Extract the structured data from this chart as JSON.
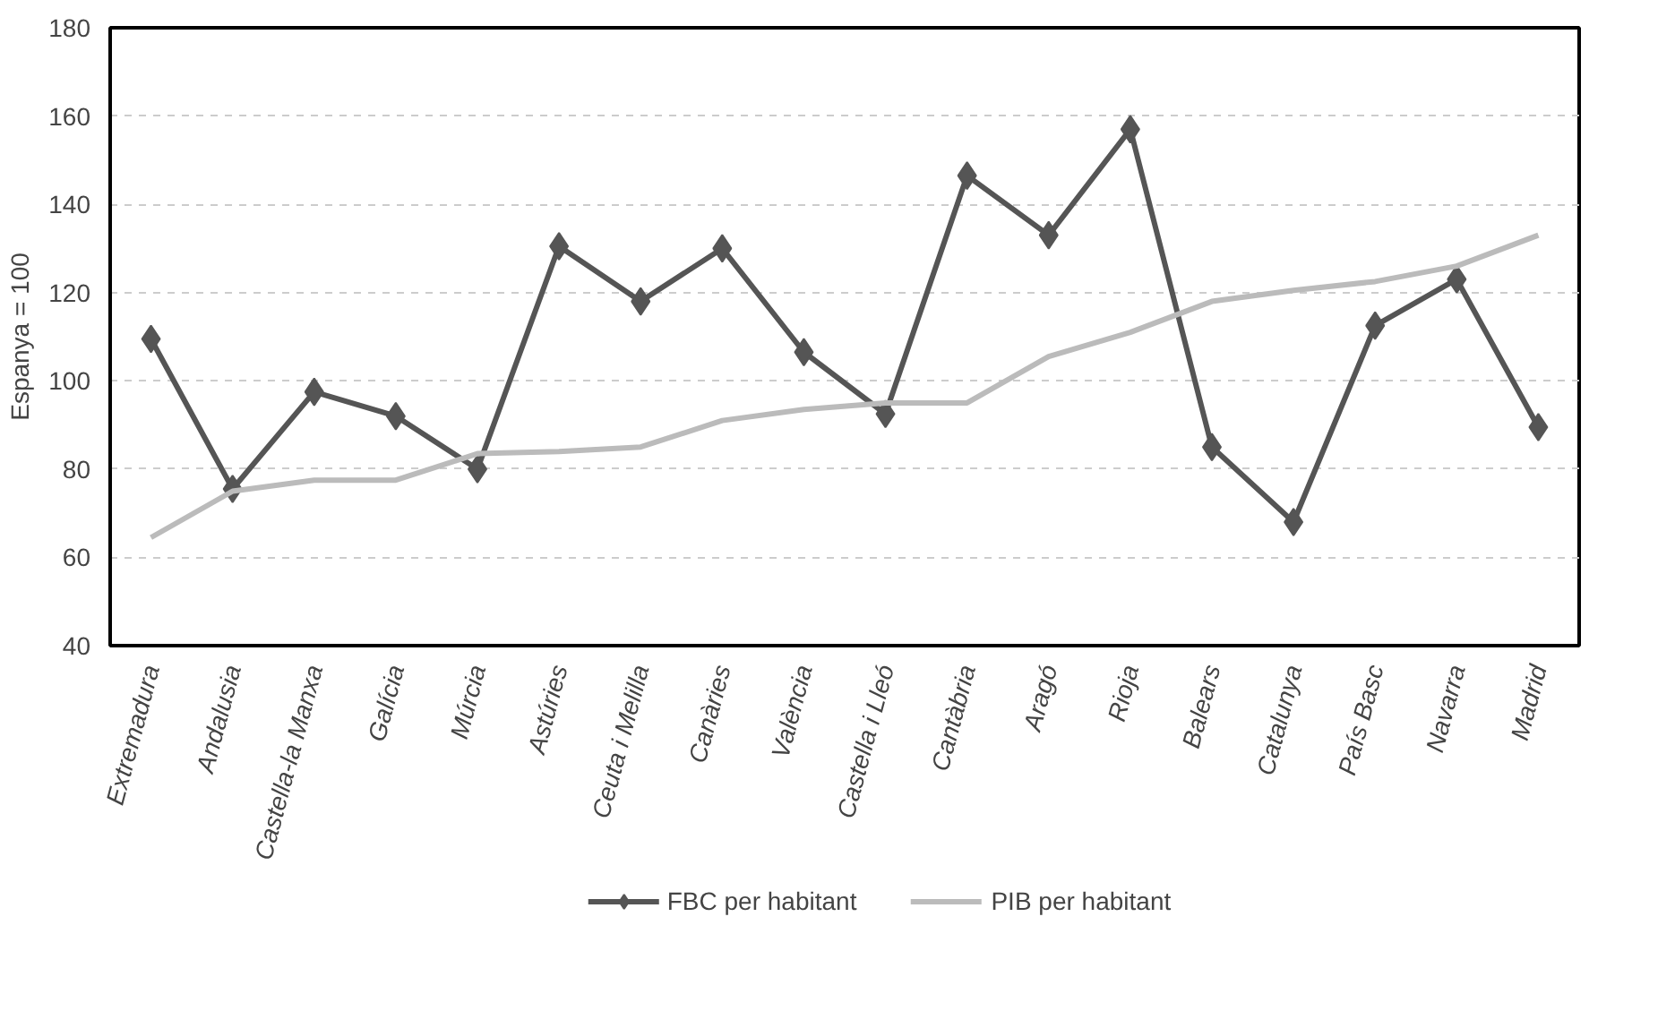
{
  "chart_data": {
    "type": "line",
    "ylabel": "Espanya = 100",
    "categories": [
      "Extremadura",
      "Andalusia",
      "Castella-la Manxa",
      "Galícia",
      "Múrcia",
      "Astúries",
      "Ceuta i Melilla",
      "Canàries",
      "València",
      "Castella i Lleó",
      "Cantàbria",
      "Aragó",
      "Rioja",
      "Balears",
      "Catalunya",
      "País Basc",
      "Navarra",
      "Madrid"
    ],
    "series": [
      {
        "name": "FBC per habitant",
        "color": "#555555",
        "marker": "diamond",
        "values": [
          109.5,
          75.5,
          97.5,
          92,
          80,
          130.5,
          118,
          130,
          106.5,
          92.5,
          146.5,
          133,
          157,
          85,
          68,
          112.5,
          123,
          89.5
        ]
      },
      {
        "name": "PIB per habitant",
        "color": "#bbbbbb",
        "marker": "none",
        "values": [
          64.5,
          75,
          77.5,
          77.5,
          83.5,
          84,
          85,
          91,
          93.5,
          95,
          95,
          105.5,
          111,
          118,
          120.5,
          122.5,
          126,
          133
        ]
      }
    ],
    "ylim": [
      40,
      180
    ],
    "yticks": [
      40,
      60,
      80,
      100,
      120,
      140,
      160,
      180
    ],
    "grid": "y",
    "legend": "bottom"
  }
}
